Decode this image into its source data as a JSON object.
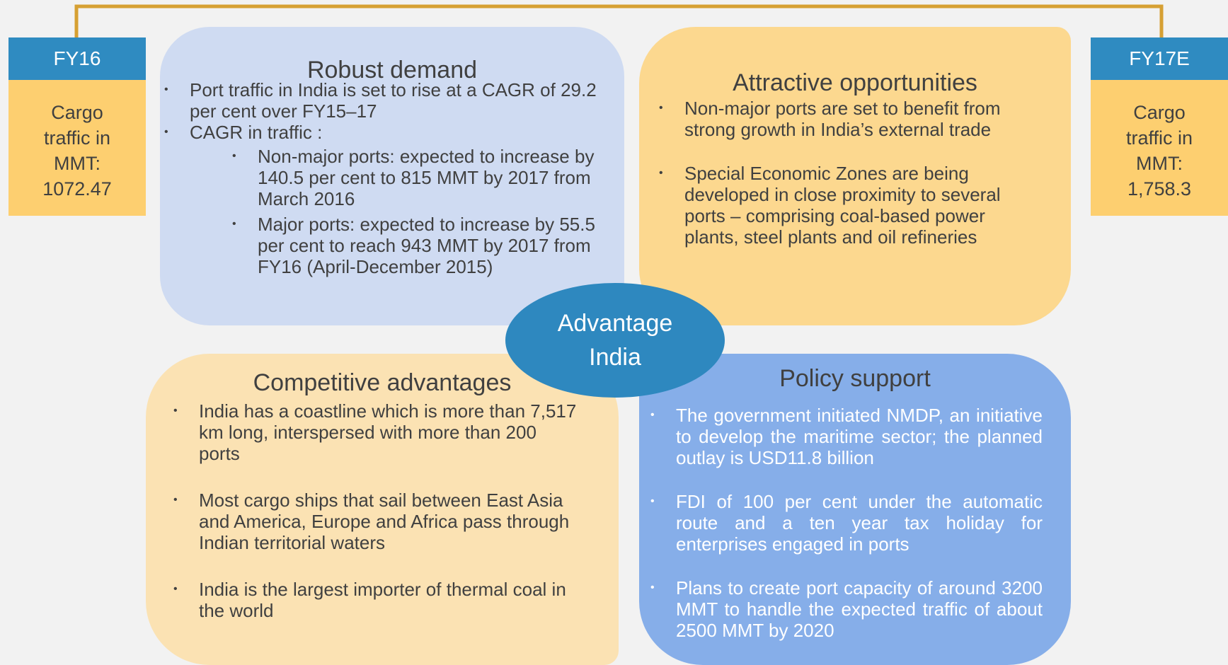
{
  "left_box": {
    "header": "FY16",
    "body": "Cargo traffic in MMT: 1072.47"
  },
  "right_box": {
    "header": "FY17E",
    "body": "Cargo traffic in MMT: 1,758.3"
  },
  "center": "Advantage India",
  "panels": [
    {
      "title": "Robust demand",
      "bullets": [
        "Port traffic in India is set to rise at a CAGR of 29.2 per cent over FY15–17",
        "CAGR in traffic :"
      ],
      "sub_bullets": [
        "Non-major ports: expected to increase by 140.5 per cent to 815 MMT by 2017 from March 2016",
        "Major ports: expected to increase by 55.5 per cent to reach 943 MMT by 2017 from FY16 (April-December 2015)"
      ]
    },
    {
      "title": "Attractive opportunities",
      "bullets": [
        "Non-major ports are set to benefit from strong growth in India’s external trade",
        "Special Economic Zones are being developed in close proximity to several ports – comprising coal-based power plants, steel plants and oil refineries"
      ]
    },
    {
      "title": "Competitive advantages",
      "bullets": [
        "India has a coastline which is more than 7,517 km long, interspersed with more than 200 ports",
        "Most cargo ships that sail between East Asia and America, Europe and Africa pass through Indian territorial waters",
        "India is the largest importer of thermal coal in the world"
      ]
    },
    {
      "title": "Policy support",
      "bullets": [
        "The government initiated NMDP, an initiative to develop the maritime sector; the planned outlay is USD11.8 billion",
        "FDI of 100 per cent under the automatic route and a ten year tax holiday for enterprises engaged in ports",
        "Plans to create port capacity of around 3200 MMT to handle the expected traffic of about 2500 MMT by 2020"
      ]
    }
  ]
}
